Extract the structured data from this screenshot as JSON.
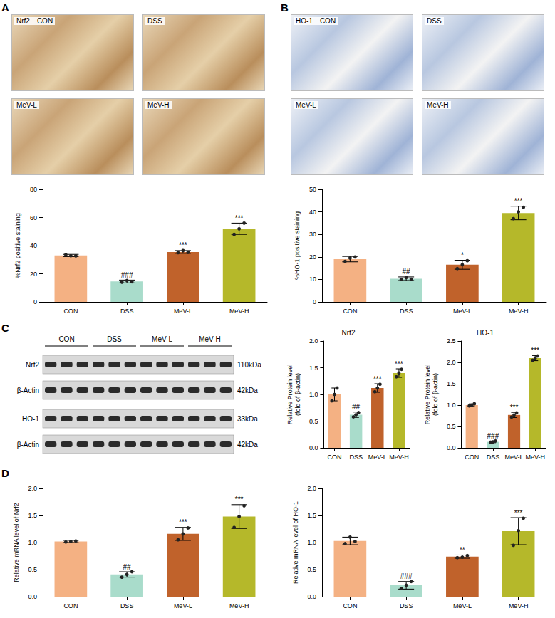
{
  "panels": [
    {
      "letter": "A",
      "images": {
        "marker": "Nrf2",
        "labels": [
          "CON",
          "DSS",
          "MeV-L",
          "MeV-H"
        ]
      }
    },
    {
      "letter": "B",
      "images": {
        "marker": "HO-1",
        "labels": [
          "CON",
          "DSS",
          "MeV-L",
          "MeV-H"
        ]
      }
    },
    {
      "letter": "C",
      "blot": {
        "groups": [
          "CON",
          "DSS",
          "MeV-L",
          "MeV-H"
        ],
        "rows": [
          {
            "label": "Nrf2",
            "size": "110kDa"
          },
          {
            "label": "β-Actin",
            "size": "42kDa"
          },
          {
            "label": "HO-1",
            "size": "33kDa"
          },
          {
            "label": "β-Actin",
            "size": "42kDa"
          }
        ]
      }
    },
    {
      "letter": "D"
    }
  ],
  "chart_data": [
    {
      "type": "bar",
      "y_label": "%Nrf2 positive staining",
      "categories": [
        "CON",
        "DSS",
        "MeV-L",
        "MeV-H"
      ],
      "values": [
        33,
        14.5,
        35.5,
        52
      ],
      "errors": [
        0.8,
        1,
        1,
        4
      ],
      "points": [
        [
          33.5,
          32.8,
          32.7
        ],
        [
          14,
          15.2,
          14.3
        ],
        [
          35,
          36.5,
          35.2
        ],
        [
          48,
          52,
          56
        ]
      ],
      "annotations": [
        null,
        "###",
        "***",
        "***"
      ],
      "colors": [
        "#f4b183",
        "#a9dccb",
        "#c0622b",
        "#b5b82a"
      ],
      "ylim": [
        0,
        80
      ],
      "yticks": [
        0,
        20,
        40,
        60,
        80
      ],
      "grid": false
    },
    {
      "type": "bar",
      "y_label": "%HO-1 positive staining",
      "categories": [
        "CON",
        "DSS",
        "MeV-L",
        "MeV-H"
      ],
      "values": [
        19,
        10.3,
        16.5,
        39.5
      ],
      "errors": [
        1.2,
        0.8,
        2,
        3
      ],
      "points": [
        [
          18,
          19.5,
          20
        ],
        [
          10,
          10.8,
          10.1
        ],
        [
          14.8,
          16.5,
          18.3
        ],
        [
          37,
          40,
          42
        ]
      ],
      "annotations": [
        null,
        "##",
        "*",
        "***"
      ],
      "colors": [
        "#f4b183",
        "#a9dccb",
        "#c0622b",
        "#b5b82a"
      ],
      "ylim": [
        0,
        50
      ],
      "yticks": [
        0,
        10,
        20,
        30,
        40,
        50
      ],
      "grid": false
    },
    {
      "type": "bar",
      "title": "Nrf2",
      "y_label": "Relative Protein level(fold of β-actin)",
      "categories": [
        "CON",
        "DSS",
        "MeV-L",
        "MeV-H"
      ],
      "values": [
        1.0,
        0.62,
        1.12,
        1.4
      ],
      "errors": [
        0.12,
        0.05,
        0.08,
        0.08
      ],
      "points": [
        [
          0.88,
          1.0,
          1.12
        ],
        [
          0.58,
          0.62,
          0.66
        ],
        [
          1.05,
          1.12,
          1.19
        ],
        [
          1.33,
          1.4,
          1.47
        ]
      ],
      "annotations": [
        null,
        "##",
        "***",
        "***"
      ],
      "colors": [
        "#f4b183",
        "#a9dccb",
        "#c0622b",
        "#b5b82a"
      ],
      "ylim": [
        0,
        2
      ],
      "yticks": [
        {
          "value": 0,
          "label": "0.0"
        },
        {
          "value": 0.5,
          "label": "0.5"
        },
        {
          "value": 1,
          "label": "1.0"
        },
        {
          "value": 1.5,
          "label": "1.5"
        },
        {
          "value": 2,
          "label": "2.0"
        }
      ],
      "grid": false
    },
    {
      "type": "bar",
      "title": "HO-1",
      "y_label": "Relative Protein level(fold of β-actin)",
      "categories": [
        "CON",
        "DSS",
        "MeV-L",
        "MeV-H"
      ],
      "values": [
        1.0,
        0.14,
        0.77,
        2.1
      ],
      "errors": [
        0.03,
        0.02,
        0.06,
        0.06
      ],
      "points": [
        [
          0.98,
          1.0,
          1.03
        ],
        [
          0.13,
          0.14,
          0.16
        ],
        [
          0.72,
          0.77,
          0.82
        ],
        [
          2.05,
          2.1,
          2.15
        ]
      ],
      "annotations": [
        null,
        "###",
        "***",
        "***"
      ],
      "colors": [
        "#f4b183",
        "#a9dccb",
        "#c0622b",
        "#b5b82a"
      ],
      "ylim": [
        0,
        2.5
      ],
      "yticks": [
        {
          "value": 0,
          "label": "0.0"
        },
        {
          "value": 0.5,
          "label": "0.5"
        },
        {
          "value": 1,
          "label": "1.0"
        },
        {
          "value": 1.5,
          "label": "1.5"
        },
        {
          "value": 2,
          "label": "2.0"
        },
        {
          "value": 2.5,
          "label": "2.5"
        }
      ],
      "grid": false
    },
    {
      "type": "bar",
      "y_label": "Relative mRNA level of Nrf2",
      "categories": [
        "CON",
        "DSS",
        "MeV-L",
        "MeV-H"
      ],
      "values": [
        1.02,
        0.41,
        1.16,
        1.48
      ],
      "errors": [
        0.02,
        0.05,
        0.12,
        0.22
      ],
      "points": [
        [
          1.01,
          1.02,
          1.03
        ],
        [
          0.36,
          0.41,
          0.46
        ],
        [
          1.05,
          1.16,
          1.27
        ],
        [
          1.28,
          1.48,
          1.68
        ]
      ],
      "annotations": [
        null,
        "##",
        "***",
        "***"
      ],
      "colors": [
        "#f4b183",
        "#a9dccb",
        "#c0622b",
        "#b5b82a"
      ],
      "ylim": [
        0,
        2
      ],
      "yticks": [
        {
          "value": 0,
          "label": "0.0"
        },
        {
          "value": 0.5,
          "label": "0.5"
        },
        {
          "value": 1,
          "label": "1.0"
        },
        {
          "value": 1.5,
          "label": "1.5"
        },
        {
          "value": 2,
          "label": "2.0"
        }
      ],
      "grid": false
    },
    {
      "type": "bar",
      "y_label": "Relative mRNA level of HO-1",
      "categories": [
        "CON",
        "DSS",
        "MeV-L",
        "MeV-H"
      ],
      "values": [
        1.03,
        0.21,
        0.74,
        1.21
      ],
      "errors": [
        0.07,
        0.07,
        0.03,
        0.25
      ],
      "points": [
        [
          0.98,
          1.1,
          1.02
        ],
        [
          0.15,
          0.21,
          0.28
        ],
        [
          0.72,
          0.73,
          0.76
        ],
        [
          0.95,
          1.22,
          1.45
        ]
      ],
      "annotations": [
        null,
        "###",
        "**",
        "***"
      ],
      "colors": [
        "#f4b183",
        "#a9dccb",
        "#c0622b",
        "#b5b82a"
      ],
      "ylim": [
        0,
        2
      ],
      "yticks": [
        {
          "value": 0,
          "label": "0.0"
        },
        {
          "value": 0.5,
          "label": "0.5"
        },
        {
          "value": 1,
          "label": "1.0"
        },
        {
          "value": 1.5,
          "label": "1.5"
        },
        {
          "value": 2,
          "label": "2.0"
        }
      ],
      "grid": false
    }
  ]
}
